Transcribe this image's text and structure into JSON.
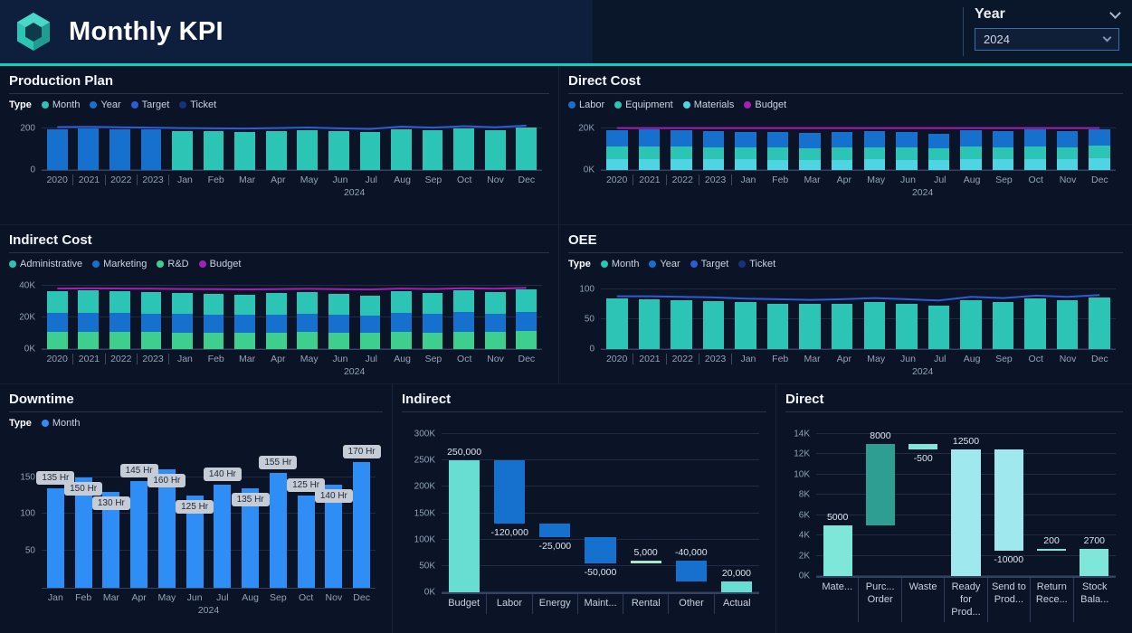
{
  "header": {
    "title": "Monthly KPI",
    "year_filter": {
      "label": "Year",
      "value": "2024"
    }
  },
  "panels": {
    "production_plan": {
      "title": "Production Plan",
      "legend_title": "Type",
      "legend": [
        {
          "label": "Month",
          "color": "#2cc5b5"
        },
        {
          "label": "Year",
          "color": "#1670ce"
        },
        {
          "label": "Target",
          "color": "#2e5bd8"
        },
        {
          "label": "Ticket",
          "color": "#16337a"
        }
      ]
    },
    "direct_cost": {
      "title": "Direct Cost",
      "legend_title": "",
      "legend": [
        {
          "label": "Labor",
          "color": "#1670ce"
        },
        {
          "label": "Equipment",
          "color": "#2cc5b5"
        },
        {
          "label": "Materials",
          "color": "#4fd4e4"
        },
        {
          "label": "Budget",
          "color": "#a61fb3"
        }
      ]
    },
    "indirect_cost": {
      "title": "Indirect Cost",
      "legend_title": "",
      "legend": [
        {
          "label": "Administrative",
          "color": "#2cc5b5"
        },
        {
          "label": "Marketing",
          "color": "#1670ce"
        },
        {
          "label": "R&D",
          "color": "#3ecf8e"
        },
        {
          "label": "Budget",
          "color": "#a61fb3"
        }
      ]
    },
    "oee": {
      "title": "OEE",
      "legend_title": "Type",
      "legend": [
        {
          "label": "Month",
          "color": "#2cc5b5"
        },
        {
          "label": "Year",
          "color": "#1670ce"
        },
        {
          "label": "Target",
          "color": "#2e5bd8"
        },
        {
          "label": "Ticket",
          "color": "#16337a"
        }
      ]
    },
    "downtime": {
      "title": "Downtime",
      "legend_title": "Type",
      "legend": [
        {
          "label": "Month",
          "color": "#2f8ef5"
        }
      ]
    },
    "indirect_waterfall": {
      "title": "Indirect"
    },
    "direct_waterfall": {
      "title": "Direct"
    }
  },
  "chart_data": [
    {
      "name": "production_plan",
      "type": "bar",
      "subtype": "column-with-target-line",
      "categories": [
        "2020",
        "2021",
        "2022",
        "2023",
        "Jan",
        "Feb",
        "Mar",
        "Apr",
        "May",
        "Jun",
        "Jul",
        "Aug",
        "Sep",
        "Oct",
        "Nov",
        "Dec"
      ],
      "year_split": 4,
      "group_label": "2024",
      "ylim": [
        0,
        220
      ],
      "yticks": [
        {
          "v": 0,
          "label": "0"
        },
        {
          "v": 200,
          "label": "200"
        }
      ],
      "stack": [
        {
          "name": "Plan",
          "split_colors": [
            "#1670ce",
            "#2cc5b5"
          ],
          "values": [
            196,
            197,
            195,
            193,
            186,
            184,
            183,
            185,
            188,
            184,
            180,
            196,
            190,
            198,
            192,
            202
          ]
        }
      ],
      "line": {
        "name": "Target",
        "color": "#2e5bd8",
        "values": [
          205,
          206,
          204,
          202,
          200,
          199,
          198,
          200,
          203,
          199,
          196,
          207,
          202,
          209,
          204,
          212
        ]
      }
    },
    {
      "name": "direct_cost",
      "type": "bar",
      "subtype": "stacked-with-budget-line",
      "categories": [
        "2020",
        "2021",
        "2022",
        "2023",
        "Jan",
        "Feb",
        "Mar",
        "Apr",
        "May",
        "Jun",
        "Jul",
        "Aug",
        "Sep",
        "Oct",
        "Nov",
        "Dec"
      ],
      "year_split": 4,
      "group_label": "2024",
      "ylim": [
        0,
        22
      ],
      "yticks": [
        {
          "v": 0,
          "label": "0K"
        },
        {
          "v": 20,
          "label": "20K"
        }
      ],
      "stack": [
        {
          "name": "Labor",
          "color": "#1670ce",
          "values": [
            7.8,
            8.0,
            7.9,
            7.7,
            7.5,
            7.4,
            7.3,
            7.4,
            7.6,
            7.4,
            7.2,
            7.8,
            7.6,
            7.9,
            7.7,
            8.0
          ]
        },
        {
          "name": "Equipment",
          "color": "#2cc5b5",
          "values": [
            6.0,
            6.1,
            6.0,
            5.9,
            5.8,
            5.7,
            5.6,
            5.7,
            5.9,
            5.7,
            5.5,
            6.0,
            5.8,
            6.1,
            5.9,
            6.2
          ]
        },
        {
          "name": "Materials",
          "color": "#4fd4e4",
          "values": [
            5.2,
            5.3,
            5.2,
            5.1,
            5.0,
            4.9,
            4.8,
            4.9,
            5.1,
            4.9,
            4.7,
            5.2,
            5.0,
            5.3,
            5.1,
            5.4
          ]
        }
      ],
      "line": {
        "name": "Budget",
        "color": "#a61fb3",
        "values": [
          20,
          20,
          20,
          20,
          20,
          20,
          20,
          20,
          20,
          20,
          20,
          20,
          20,
          20,
          20,
          20
        ]
      }
    },
    {
      "name": "indirect_cost",
      "type": "bar",
      "subtype": "stacked-with-budget-line",
      "categories": [
        "2020",
        "2021",
        "2022",
        "2023",
        "Jan",
        "Feb",
        "Mar",
        "Apr",
        "May",
        "Jun",
        "Jul",
        "Aug",
        "Sep",
        "Oct",
        "Nov",
        "Dec"
      ],
      "year_split": 4,
      "group_label": "2024",
      "ylim": [
        0,
        42
      ],
      "yticks": [
        {
          "v": 0,
          "label": "0K"
        },
        {
          "v": 20,
          "label": "20K"
        },
        {
          "v": 40,
          "label": "40K"
        }
      ],
      "stack": [
        {
          "name": "Administrative",
          "color": "#2cc5b5",
          "values": [
            14,
            14.2,
            14,
            13.8,
            13.5,
            13.3,
            13.2,
            13.4,
            13.7,
            13.3,
            13,
            14,
            13.6,
            14.2,
            13.8,
            14.4
          ]
        },
        {
          "name": "Marketing",
          "color": "#1670ce",
          "values": [
            12,
            12.1,
            12,
            11.8,
            11.6,
            11.4,
            11.3,
            11.5,
            11.8,
            11.4,
            11.1,
            12,
            11.6,
            12.2,
            11.8,
            12.4
          ]
        },
        {
          "name": "R&D",
          "color": "#3ecf8e",
          "values": [
            11,
            11.1,
            11,
            10.8,
            10.6,
            10.4,
            10.3,
            10.5,
            10.8,
            10.4,
            10.1,
            11,
            10.6,
            11.2,
            10.8,
            11.4
          ]
        }
      ],
      "line": {
        "name": "Budget",
        "color": "#a61fb3",
        "values": [
          38.5,
          38.6,
          38.5,
          38.4,
          38.2,
          38.1,
          38,
          38.1,
          38.3,
          38.1,
          37.9,
          38.5,
          38.2,
          38.7,
          38.4,
          38.9
        ]
      }
    },
    {
      "name": "oee",
      "type": "bar",
      "subtype": "column-with-target-line",
      "categories": [
        "2020",
        "2021",
        "2022",
        "2023",
        "Jan",
        "Feb",
        "Mar",
        "Apr",
        "May",
        "Jun",
        "Jul",
        "Aug",
        "Sep",
        "Oct",
        "Nov",
        "Dec"
      ],
      "year_split": 4,
      "group_label": "2024",
      "ylim": [
        0,
        110
      ],
      "yticks": [
        {
          "v": 0,
          "label": "0"
        },
        {
          "v": 50,
          "label": "50"
        },
        {
          "v": 100,
          "label": "100"
        }
      ],
      "stack": [
        {
          "name": "OEE",
          "color": "#2cc5b5",
          "values": [
            84,
            83,
            82,
            80,
            78,
            76,
            75,
            76,
            79,
            76,
            73,
            82,
            79,
            84,
            81,
            86
          ]
        }
      ],
      "line": {
        "name": "Target",
        "color": "#2e5bd8",
        "values": [
          88,
          88,
          87,
          86,
          84,
          83,
          82,
          83,
          85,
          83,
          81,
          87,
          85,
          89,
          87,
          90
        ]
      }
    },
    {
      "name": "downtime",
      "type": "bar",
      "subtype": "column-with-data-labels",
      "categories": [
        "Jan",
        "Feb",
        "Mar",
        "Apr",
        "May",
        "Jun",
        "Jul",
        "Aug",
        "Sep",
        "Oct",
        "Nov",
        "Dec"
      ],
      "year_split": 0,
      "group_label": "2024",
      "ylim": [
        0,
        180
      ],
      "yticks": [
        {
          "v": 50,
          "label": "50"
        },
        {
          "v": 100,
          "label": "100"
        },
        {
          "v": 150,
          "label": "150"
        }
      ],
      "color": "#2f8ef5",
      "values": [
        135,
        150,
        130,
        145,
        160,
        125,
        140,
        135,
        155,
        125,
        140,
        170
      ],
      "bar_labels": [
        "135 Hr",
        "150 Hr",
        "130 Hr",
        "145 Hr",
        "160 Hr",
        "125 Hr",
        "140 Hr",
        "135 Hr",
        "155 Hr",
        "125 Hr",
        "140 Hr",
        "170 Hr"
      ],
      "label_inside": [
        false,
        true,
        true,
        false,
        true,
        true,
        false,
        true,
        false,
        false,
        true,
        false
      ]
    },
    {
      "name": "indirect_waterfall",
      "type": "waterfall",
      "title": "Indirect",
      "ylim": [
        0,
        300000
      ],
      "yticks": [
        {
          "v": 0,
          "label": "0K"
        },
        {
          "v": 50000,
          "label": "50K"
        },
        {
          "v": 100000,
          "label": "100K"
        },
        {
          "v": 150000,
          "label": "150K"
        },
        {
          "v": 200000,
          "label": "200K"
        },
        {
          "v": 250000,
          "label": "250K"
        },
        {
          "v": 300000,
          "label": "300K"
        }
      ],
      "bars": [
        {
          "category": "Budget",
          "label": "250,000",
          "value": 250000,
          "start": 0,
          "end": 250000,
          "color": "#68ddd1",
          "label_pos": "above"
        },
        {
          "category": "Labor",
          "label": "-120,000",
          "value": -120000,
          "start": 250000,
          "end": 130000,
          "color": "#1670ce",
          "label_pos": "below"
        },
        {
          "category": "Energy",
          "label": "-25,000",
          "value": -25000,
          "start": 130000,
          "end": 105000,
          "color": "#1670ce",
          "label_pos": "below"
        },
        {
          "category": "Maint...",
          "label": "-50,000",
          "value": -50000,
          "start": 105000,
          "end": 55000,
          "color": "#1670ce",
          "label_pos": "below"
        },
        {
          "category": "Rental",
          "label": "5,000",
          "value": 5000,
          "start": 55000,
          "end": 60000,
          "color": "#a8e8c4",
          "label_pos": "above"
        },
        {
          "category": "Other",
          "label": "-40,000",
          "value": -40000,
          "start": 60000,
          "end": 20000,
          "color": "#1670ce",
          "label_pos": "above"
        },
        {
          "category": "Actual",
          "label": "20,000",
          "value": 20000,
          "start": 0,
          "end": 20000,
          "color": "#68ddd1",
          "label_pos": "above"
        }
      ]
    },
    {
      "name": "direct_waterfall",
      "type": "waterfall",
      "title": "Direct",
      "ylim": [
        0,
        14000
      ],
      "yticks": [
        {
          "v": 0,
          "label": "0K"
        },
        {
          "v": 2000,
          "label": "2K"
        },
        {
          "v": 4000,
          "label": "4K"
        },
        {
          "v": 6000,
          "label": "6K"
        },
        {
          "v": 8000,
          "label": "8K"
        },
        {
          "v": 10000,
          "label": "10K"
        },
        {
          "v": 12000,
          "label": "12K"
        },
        {
          "v": 14000,
          "label": "14K"
        }
      ],
      "bars": [
        {
          "category": "Mate...",
          "label": "5000",
          "value": 5000,
          "start": 0,
          "end": 5000,
          "color": "#7fe6da",
          "label_pos": "above"
        },
        {
          "category": "Purc... Order",
          "label": "8000",
          "value": 8000,
          "start": 5000,
          "end": 13000,
          "color": "#2f9e92",
          "label_pos": "above"
        },
        {
          "category": "Waste",
          "label": "-500",
          "value": -500,
          "start": 13000,
          "end": 12500,
          "color": "#7fe6da",
          "label_pos": "below"
        },
        {
          "category": "Ready for Prod...",
          "label": "12500",
          "value": 12500,
          "start": 0,
          "end": 12500,
          "color": "#9fe9ee",
          "label_pos": "above"
        },
        {
          "category": "Send to Prod...",
          "label": "-10000",
          "value": -10000,
          "start": 12500,
          "end": 2500,
          "color": "#9fe9ee",
          "label_pos": "below"
        },
        {
          "category": "Return Rece...",
          "label": "200",
          "value": 200,
          "start": 2500,
          "end": 2700,
          "color": "#7fe6da",
          "label_pos": "above"
        },
        {
          "category": "Stock Bala...",
          "label": "2700",
          "value": 2700,
          "start": 0,
          "end": 2700,
          "color": "#7fe6da",
          "label_pos": "above"
        }
      ]
    }
  ]
}
